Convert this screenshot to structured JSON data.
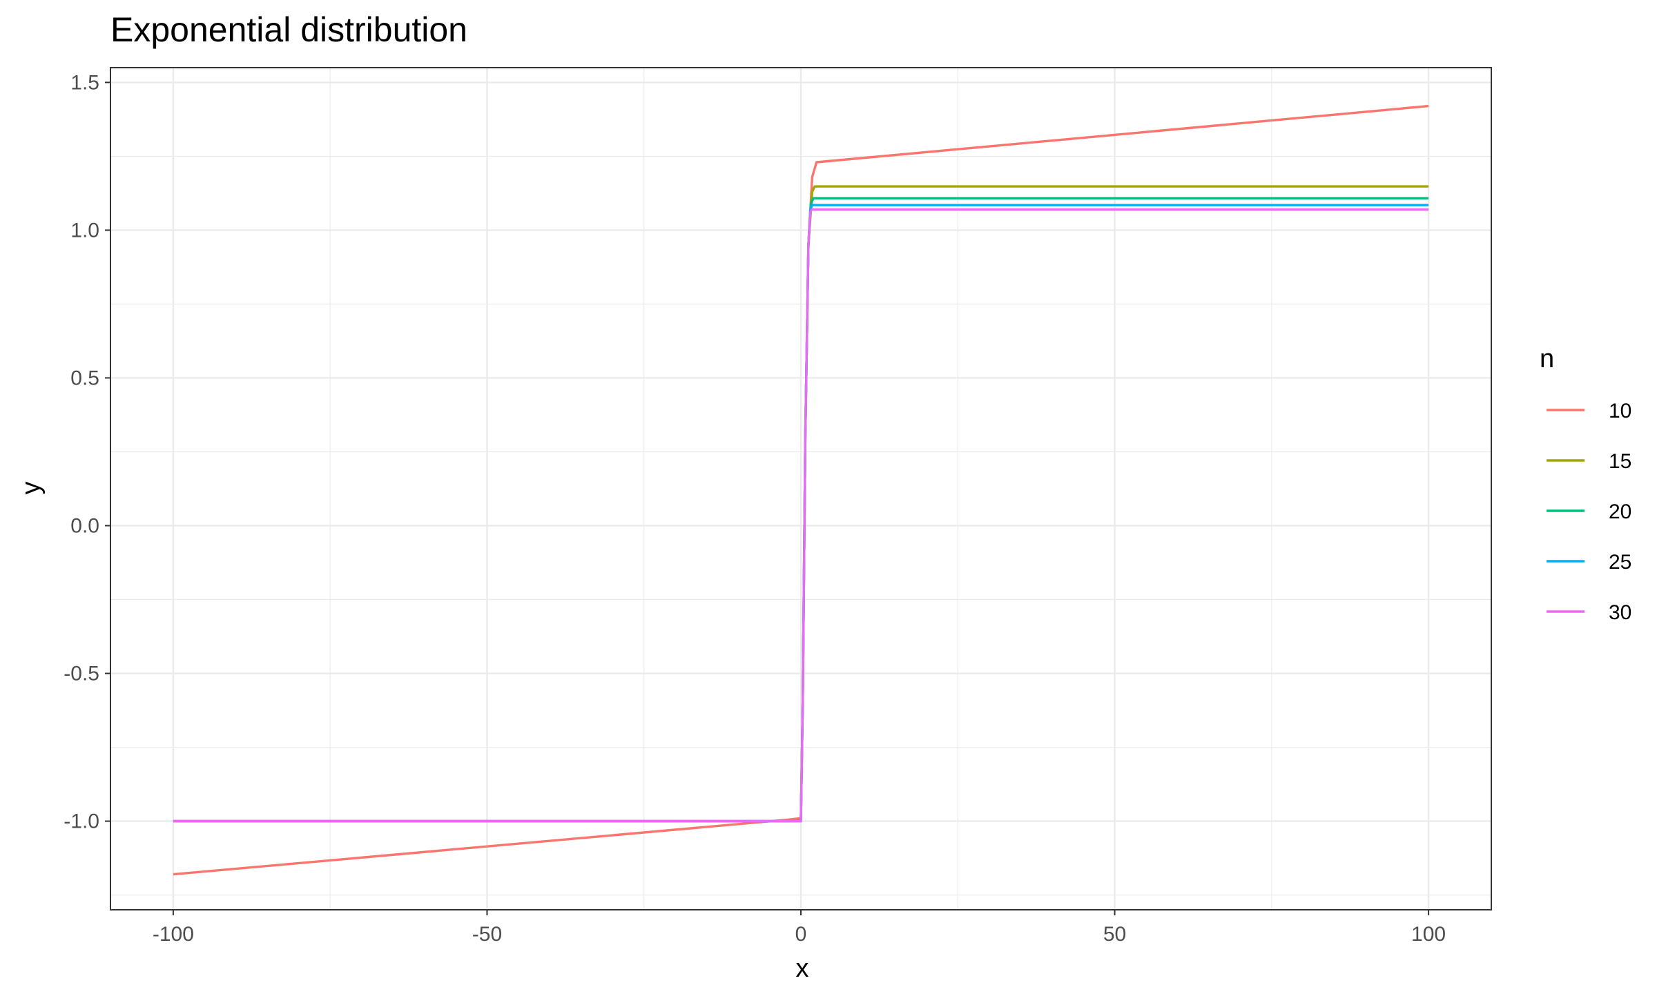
{
  "chart_data": {
    "type": "line",
    "title": "Exponential distribution",
    "xlabel": "x",
    "ylabel": "y",
    "xlim": [
      -110,
      110
    ],
    "ylim": [
      -1.3,
      1.55
    ],
    "xticks": [
      -100,
      -50,
      0,
      50,
      100
    ],
    "xtick_labels": [
      "-100",
      "-50",
      "0",
      "50",
      "100"
    ],
    "xminor": [
      -75,
      -25,
      25,
      75
    ],
    "yticks": [
      -1.0,
      -0.5,
      0.0,
      0.5,
      1.0,
      1.5
    ],
    "ytick_labels": [
      "-1.0",
      "-0.5",
      "0.0",
      "0.5",
      "1.0",
      "1.5"
    ],
    "yminor": [
      -1.25,
      -0.75,
      -0.25,
      0.25,
      0.75,
      1.25
    ],
    "grid": true,
    "legend": {
      "title": "n",
      "placement": "right"
    },
    "series": [
      {
        "name": "10",
        "color": "#F8766D",
        "points": [
          [
            -100,
            -1.18
          ],
          [
            -2,
            -0.995
          ],
          [
            0,
            -0.99
          ],
          [
            0.3,
            -0.6
          ],
          [
            0.7,
            0.3
          ],
          [
            1.2,
            0.95
          ],
          [
            1.8,
            1.18
          ],
          [
            2.5,
            1.23
          ],
          [
            100,
            1.42
          ]
        ]
      },
      {
        "name": "15",
        "color": "#A3A500",
        "points": [
          [
            -100,
            -1.0
          ],
          [
            -1,
            -1.0
          ],
          [
            0,
            -0.995
          ],
          [
            0.3,
            -0.6
          ],
          [
            0.7,
            0.3
          ],
          [
            1.2,
            0.95
          ],
          [
            1.8,
            1.13
          ],
          [
            2.2,
            1.148
          ],
          [
            100,
            1.148
          ]
        ]
      },
      {
        "name": "20",
        "color": "#00BF7D",
        "points": [
          [
            -100,
            -1.0
          ],
          [
            0,
            -1.0
          ],
          [
            0.3,
            -0.6
          ],
          [
            0.7,
            0.3
          ],
          [
            1.2,
            0.95
          ],
          [
            1.6,
            1.09
          ],
          [
            2.0,
            1.108
          ],
          [
            100,
            1.108
          ]
        ]
      },
      {
        "name": "25",
        "color": "#00B0F6",
        "points": [
          [
            -100,
            -1.0
          ],
          [
            0,
            -1.0
          ],
          [
            0.3,
            -0.6
          ],
          [
            0.7,
            0.3
          ],
          [
            1.2,
            0.95
          ],
          [
            1.5,
            1.07
          ],
          [
            1.8,
            1.085
          ],
          [
            100,
            1.085
          ]
        ]
      },
      {
        "name": "30",
        "color": "#E76BF3",
        "points": [
          [
            -100,
            -1.0
          ],
          [
            0,
            -1.0
          ],
          [
            0.3,
            -0.6
          ],
          [
            0.7,
            0.3
          ],
          [
            1.2,
            0.95
          ],
          [
            1.5,
            1.06
          ],
          [
            1.7,
            1.07
          ],
          [
            100,
            1.07
          ]
        ]
      }
    ]
  }
}
